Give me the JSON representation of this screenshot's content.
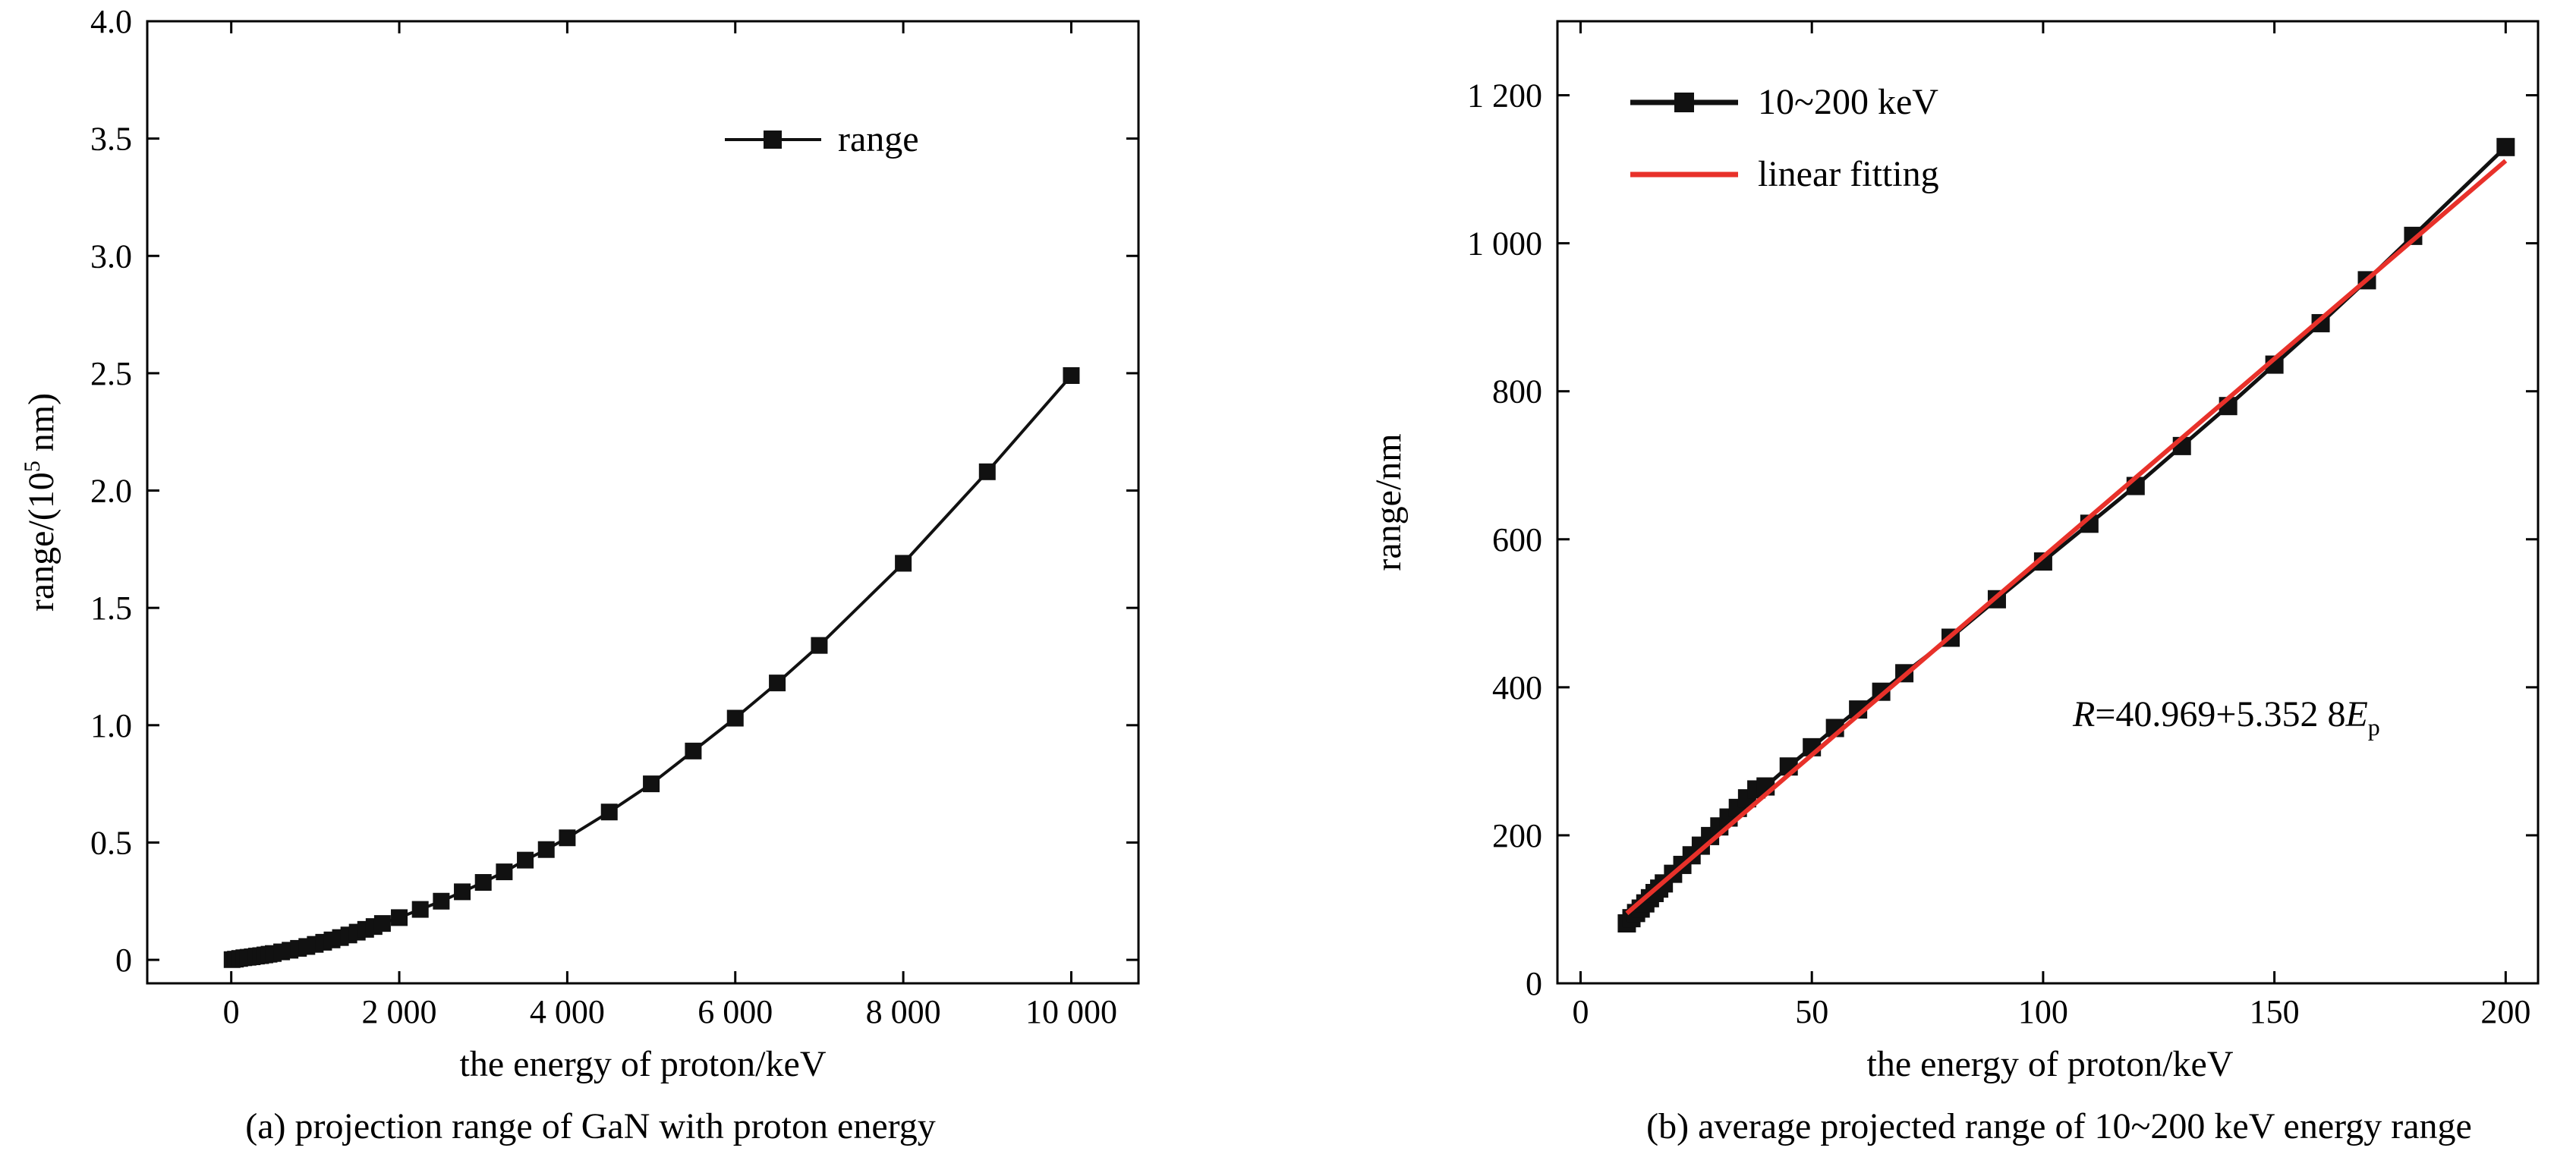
{
  "chart_data": [
    {
      "type": "line",
      "caption": "(a) projection range of GaN with proton energy",
      "xlabel": "the energy of proton/keV",
      "ylabel_main": "range/(10",
      "ylabel_sup": "5",
      "ylabel_tail": " nm)",
      "xlim": [
        -1000,
        10800
      ],
      "ylim": [
        -0.1,
        4.0
      ],
      "x_ticks": [
        0,
        2000,
        4000,
        6000,
        8000,
        10000
      ],
      "x_tick_labels": [
        "0",
        "2 000",
        "4 000",
        "6 000",
        "8 000",
        "10 000"
      ],
      "y_ticks": [
        0,
        0.5,
        1.0,
        1.5,
        2.0,
        2.5,
        3.0,
        3.5,
        4.0
      ],
      "y_tick_labels": [
        "0",
        "0.5",
        "1.0",
        "1.5",
        "2.0",
        "2.5",
        "3.0",
        "3.5",
        "4.0"
      ],
      "legend": {
        "position": "top-right",
        "entries": [
          {
            "label": "range",
            "marker": "square",
            "color": "#111111"
          }
        ]
      },
      "series": [
        {
          "name": "range",
          "color": "#111111",
          "x": [
            10,
            50,
            100,
            150,
            200,
            250,
            300,
            350,
            400,
            450,
            500,
            600,
            700,
            800,
            900,
            1000,
            1100,
            1200,
            1300,
            1400,
            1500,
            1600,
            1700,
            1800,
            2000,
            2250,
            2500,
            2750,
            3000,
            3250,
            3500,
            3750,
            4000,
            4500,
            5000,
            5500,
            6000,
            6500,
            7000,
            8000,
            9000,
            10000
          ],
          "y": [
            0.001,
            0.003,
            0.006,
            0.009,
            0.011,
            0.013,
            0.016,
            0.018,
            0.021,
            0.024,
            0.027,
            0.034,
            0.041,
            0.049,
            0.057,
            0.066,
            0.075,
            0.085,
            0.095,
            0.106,
            0.118,
            0.13,
            0.142,
            0.155,
            0.18,
            0.215,
            0.25,
            0.29,
            0.33,
            0.375,
            0.425,
            0.47,
            0.52,
            0.63,
            0.75,
            0.89,
            1.03,
            1.18,
            1.34,
            1.69,
            2.08,
            2.49
          ]
        }
      ]
    },
    {
      "type": "line",
      "caption": "(b) average projected range of 10~200 keV energy range",
      "xlabel": "the energy of proton/keV",
      "ylabel": "range/nm",
      "xlim": [
        -5,
        207
      ],
      "ylim": [
        0,
        1300
      ],
      "x_ticks": [
        0,
        50,
        100,
        150,
        200
      ],
      "x_tick_labels": [
        "0",
        "50",
        "100",
        "150",
        "200"
      ],
      "y_ticks": [
        0,
        200,
        400,
        600,
        800,
        1000,
        1200
      ],
      "y_tick_labels": [
        "0",
        "200",
        "400",
        "600",
        "800",
        "1 000",
        "1 200"
      ],
      "annotation": {
        "r": "R",
        "mid": "=40.969+5.352 8",
        "e": "E",
        "sub": "p"
      },
      "legend": {
        "position": "top-left",
        "entries": [
          {
            "label": "10~200 keV",
            "marker": "square",
            "color": "#111111"
          },
          {
            "label": "linear fitting",
            "marker": "none",
            "color": "#e8312a"
          }
        ]
      },
      "series": [
        {
          "name": "10~200 keV",
          "color": "#111111",
          "x": [
            10,
            11,
            12,
            13,
            14,
            15,
            16,
            17,
            18,
            20,
            22,
            24,
            26,
            28,
            30,
            32,
            34,
            36,
            38,
            40,
            45,
            50,
            55,
            60,
            65,
            70,
            80,
            90,
            100,
            110,
            120,
            130,
            140,
            150,
            160,
            170,
            180,
            200
          ],
          "y": [
            81,
            88,
            95,
            101,
            108,
            115,
            122,
            128,
            135,
            148,
            160,
            173,
            186,
            199,
            212,
            224,
            237,
            250,
            262,
            266,
            293,
            319,
            345,
            370,
            394,
            419,
            467,
            519,
            570,
            621,
            672,
            726,
            780,
            836,
            892,
            950,
            1010,
            1130
          ]
        },
        {
          "name": "linear fitting",
          "color": "#e8312a",
          "x": [
            10,
            200
          ],
          "y": [
            94.5,
            1111.5
          ]
        }
      ]
    }
  ]
}
